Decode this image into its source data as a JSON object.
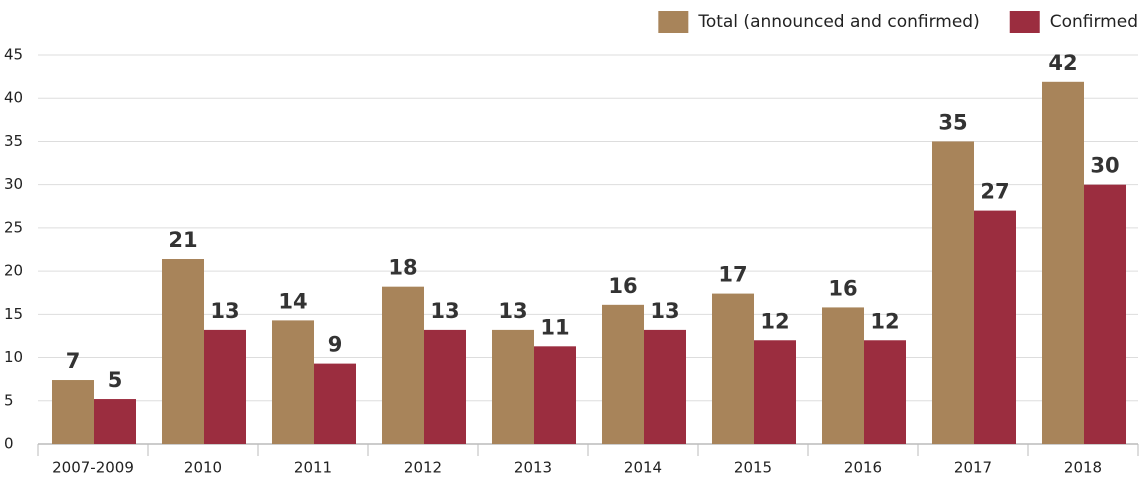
{
  "chart_data": {
    "type": "bar",
    "categories": [
      "2007-2009",
      "2010",
      "2011",
      "2012",
      "2013",
      "2014",
      "2015",
      "2016",
      "2017",
      "2018"
    ],
    "series": [
      {
        "name": "Total (announced and confirmed)",
        "color": "#a8845a",
        "values": [
          7.4,
          21.4,
          14.3,
          18.2,
          13.2,
          16.1,
          17.4,
          15.8,
          35,
          41.9
        ],
        "value_labels": [
          "7",
          "21",
          "14",
          "18",
          "13",
          "16",
          "17",
          "16",
          "35",
          "42"
        ]
      },
      {
        "name": "Confirmed",
        "color": "#9b2d3f",
        "values": [
          5.2,
          13.2,
          9.3,
          13.2,
          11.3,
          13.2,
          12,
          12,
          27,
          30
        ],
        "value_labels": [
          "5",
          "13",
          "9",
          "13",
          "11",
          "13",
          "12",
          "12",
          "27",
          "30"
        ]
      }
    ],
    "ylim": [
      0,
      45
    ],
    "yticks": [
      0,
      5,
      10,
      15,
      20,
      25,
      30,
      35,
      40,
      45
    ],
    "grid": true,
    "legend": "top-right"
  }
}
